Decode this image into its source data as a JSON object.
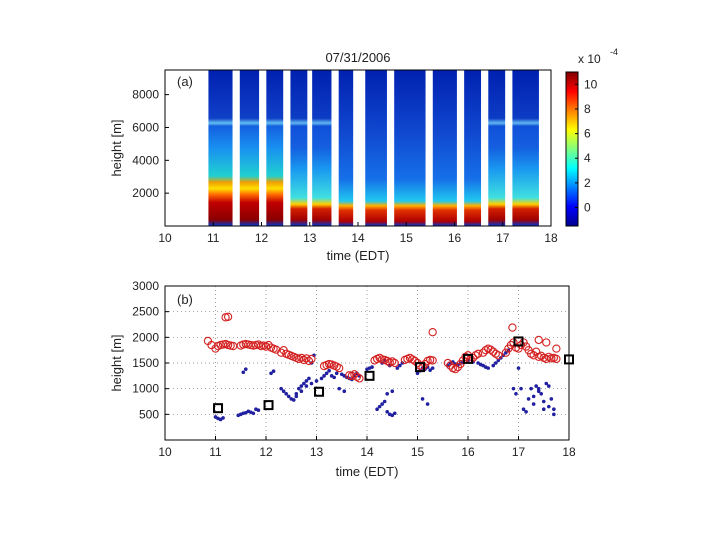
{
  "chart_data": [
    {
      "type": "heatmap",
      "title": "07/31/2006",
      "panel_label": "(a)",
      "xlabel": "time (EDT)",
      "ylabel": "height [m]",
      "xlim": [
        10,
        18
      ],
      "ylim": [
        0,
        9500
      ],
      "xticks": [
        10,
        11,
        12,
        13,
        14,
        15,
        16,
        17,
        18
      ],
      "yticks": [
        2000,
        4000,
        6000,
        8000
      ],
      "grid": false,
      "data_extent_x": [
        10.9,
        17.75
      ],
      "gaps_x": [
        [
          11.4,
          11.55
        ],
        [
          11.95,
          12.1
        ],
        [
          12.45,
          12.6
        ],
        [
          12.95,
          13.05
        ],
        [
          13.45,
          13.6
        ],
        [
          13.9,
          14.15
        ],
        [
          14.6,
          14.75
        ],
        [
          15.4,
          15.55
        ],
        [
          16.05,
          16.2
        ],
        [
          16.55,
          16.7
        ],
        [
          17.05,
          17.2
        ]
      ],
      "colorbar": {
        "scale_label": "x 10",
        "scale_exponent": "-4",
        "ticks": [
          0,
          2,
          4,
          6,
          8,
          10
        ],
        "range": [
          -1.5,
          11
        ],
        "colormap": "jet",
        "placement": "right"
      }
    },
    {
      "type": "scatter",
      "panel_label": "(b)",
      "xlabel": "time (EDT)",
      "ylabel": "height [m]",
      "xlim": [
        10,
        18
      ],
      "ylim": [
        0,
        3000
      ],
      "xticks": [
        10,
        11,
        12,
        13,
        14,
        15,
        16,
        17,
        18
      ],
      "yticks": [
        500,
        1000,
        1500,
        2000,
        2500,
        3000
      ],
      "grid": true,
      "series": [
        {
          "marker": "circle-open",
          "color": "#d42020",
          "x": [
            10.85,
            10.92,
            11.0,
            11.05,
            11.1,
            11.15,
            11.2,
            11.25,
            11.3,
            11.35,
            11.2,
            11.25,
            11.5,
            11.55,
            11.6,
            11.65,
            11.7,
            11.75,
            11.8,
            11.85,
            11.9,
            11.95,
            12.0,
            12.05,
            12.1,
            12.15,
            12.2,
            12.3,
            12.35,
            12.4,
            12.45,
            12.5,
            12.55,
            12.6,
            12.65,
            12.7,
            12.75,
            12.8,
            12.85,
            12.9,
            13.15,
            13.2,
            13.25,
            13.3,
            13.35,
            13.4,
            13.45,
            13.65,
            13.7,
            13.75,
            13.8,
            13.85,
            14.15,
            14.2,
            14.25,
            14.3,
            14.35,
            14.4,
            14.45,
            14.5,
            14.55,
            14.75,
            14.8,
            14.85,
            14.9,
            14.95,
            15.0,
            15.05,
            15.1,
            15.15,
            15.2,
            15.25,
            15.3,
            15.3,
            15.6,
            15.65,
            15.7,
            15.75,
            15.8,
            15.85,
            15.9,
            15.95,
            16.0,
            16.05,
            16.1,
            16.15,
            16.2,
            16.3,
            16.35,
            16.4,
            16.45,
            16.5,
            16.55,
            16.6,
            16.75,
            16.8,
            16.85,
            16.9,
            16.95,
            16.88,
            17.0,
            17.05,
            17.1,
            17.15,
            17.2,
            17.25,
            17.3,
            17.35,
            17.4,
            17.45,
            17.5,
            17.55,
            17.6,
            17.65,
            17.7,
            17.75,
            17.4,
            17.55,
            17.75
          ],
          "y": [
            1930,
            1850,
            1780,
            1830,
            1850,
            1860,
            1870,
            1850,
            1840,
            1830,
            2390,
            2400,
            1840,
            1860,
            1870,
            1860,
            1850,
            1840,
            1850,
            1860,
            1830,
            1840,
            1820,
            1850,
            1800,
            1780,
            1760,
            1700,
            1750,
            1680,
            1660,
            1640,
            1620,
            1600,
            1580,
            1600,
            1560,
            1590,
            1540,
            1580,
            1440,
            1460,
            1480,
            1470,
            1450,
            1430,
            1400,
            1260,
            1250,
            1280,
            1230,
            1200,
            1550,
            1580,
            1600,
            1570,
            1560,
            1540,
            1510,
            1530,
            1500,
            1560,
            1580,
            1600,
            1570,
            1540,
            1500,
            1450,
            1420,
            1480,
            1540,
            1560,
            1550,
            2100,
            1500,
            1450,
            1400,
            1380,
            1420,
            1480,
            1550,
            1620,
            1650,
            1580,
            1600,
            1650,
            1680,
            1700,
            1750,
            1780,
            1760,
            1720,
            1680,
            1650,
            1700,
            1780,
            1850,
            1900,
            1800,
            2190,
            1780,
            1850,
            1900,
            1820,
            1750,
            1680,
            1650,
            1720,
            1620,
            1640,
            1600,
            1580,
            1620,
            1590,
            1600,
            1580,
            1950,
            1900,
            1780
          ]
        },
        {
          "marker": "dot",
          "color": "#2020a0",
          "x": [
            11.0,
            11.05,
            11.1,
            11.15,
            11.45,
            11.5,
            11.55,
            11.6,
            11.65,
            11.7,
            11.75,
            11.8,
            11.85,
            11.6,
            11.55,
            12.1,
            12.15,
            12.3,
            12.35,
            12.4,
            12.45,
            12.5,
            12.55,
            12.6,
            12.65,
            12.7,
            12.75,
            12.8,
            12.85,
            12.9,
            12.95,
            12.6,
            12.7,
            12.8,
            12.9,
            13.0,
            13.1,
            13.15,
            13.2,
            13.25,
            13.3,
            13.35,
            13.4,
            13.5,
            13.55,
            13.6,
            13.65,
            13.7,
            13.75,
            13.8,
            13.85,
            13.45,
            13.55,
            14.0,
            14.05,
            14.1,
            14.2,
            14.25,
            14.3,
            14.35,
            14.4,
            14.45,
            14.5,
            14.55,
            14.3,
            14.35,
            14.45,
            14.6,
            14.65,
            14.7,
            14.4,
            14.5,
            15.0,
            15.05,
            15.1,
            15.15,
            15.2,
            15.25,
            15.3,
            15.1,
            15.2,
            15.6,
            15.65,
            15.7,
            15.75,
            15.8,
            15.85,
            15.9,
            16.0,
            16.1,
            16.2,
            16.25,
            16.3,
            16.35,
            16.4,
            16.5,
            16.55,
            16.6,
            16.65,
            16.7,
            16.75,
            16.8,
            16.9,
            16.95,
            17.0,
            17.05,
            17.1,
            17.15,
            17.2,
            17.25,
            17.3,
            17.35,
            17.4,
            17.45,
            17.5,
            17.55,
            17.6,
            17.65,
            17.7,
            17.3,
            17.4,
            17.5,
            17.6,
            17.7
          ],
          "y": [
            450,
            420,
            400,
            430,
            480,
            500,
            520,
            530,
            560,
            540,
            520,
            600,
            580,
            1380,
            1320,
            1300,
            1340,
            1000,
            950,
            900,
            850,
            800,
            780,
            900,
            1000,
            1050,
            1100,
            1150,
            1200,
            1500,
            1650,
            850,
            950,
            1050,
            1100,
            1150,
            1200,
            1250,
            1300,
            1350,
            1250,
            1220,
            1300,
            1280,
            1250,
            1220,
            1200,
            1180,
            1260,
            1300,
            1250,
            1000,
            950,
            1380,
            1400,
            1420,
            600,
            650,
            700,
            750,
            550,
            500,
            480,
            520,
            1500,
            1550,
            1450,
            1400,
            1450,
            1500,
            900,
            950,
            1300,
            1350,
            1400,
            1380,
            1420,
            1360,
            1400,
            800,
            700,
            1450,
            1500,
            1520,
            1480,
            1460,
            1500,
            1520,
            1550,
            1520,
            1500,
            1470,
            1450,
            1420,
            1400,
            1450,
            1500,
            1550,
            1600,
            1650,
            1700,
            1750,
            1000,
            900,
            1400,
            1000,
            600,
            550,
            800,
            1000,
            700,
            1050,
            1000,
            900,
            600,
            1100,
            1050,
            800,
            600,
            850,
            950,
            750,
            650,
            500
          ]
        },
        {
          "marker": "square-open",
          "color": "#000000",
          "x": [
            11.05,
            12.05,
            13.05,
            14.05,
            15.05,
            16.0,
            17.0,
            18.0
          ],
          "y": [
            620,
            680,
            940,
            1250,
            1420,
            1580,
            1920,
            1570
          ]
        }
      ]
    }
  ]
}
